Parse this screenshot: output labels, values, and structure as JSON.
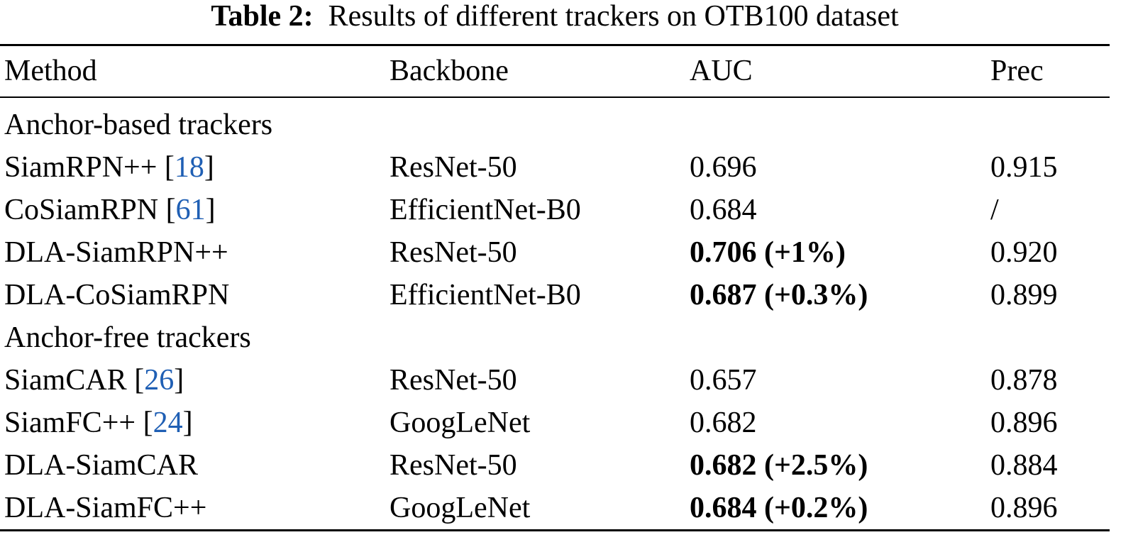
{
  "table": {
    "caption": {
      "label": "Table 2:",
      "text": "Results of different trackers on OTB100 dataset"
    },
    "citation_brackets": [
      "[",
      "]"
    ],
    "header": [
      "Method",
      "Backbone",
      "AUC",
      "Prec"
    ],
    "groups": [
      {
        "name": "Anchor-based trackers",
        "rows": [
          {
            "method": "SiamRPN++",
            "ref": "18",
            "backbone": "ResNet-50",
            "auc": "0.696",
            "prec": "0.915"
          },
          {
            "method": "CoSiamRPN",
            "ref": "61",
            "backbone": "EfficientNet-B0",
            "auc": "0.684",
            "prec": "/"
          },
          {
            "method": "DLA-SiamRPN++",
            "backbone": "ResNet-50",
            "auc": "0.706 (+1%)",
            "auc_bold": true,
            "prec": "0.920"
          },
          {
            "method": "DLA-CoSiamRPN",
            "backbone": "EfficientNet-B0",
            "auc": "0.687 (+0.3%)",
            "auc_bold": true,
            "prec": "0.899"
          }
        ]
      },
      {
        "name": "Anchor-free trackers",
        "rows": [
          {
            "method": "SiamCAR",
            "ref": "26",
            "backbone": "ResNet-50",
            "auc": "0.657",
            "prec": "0.878"
          },
          {
            "method": "SiamFC++",
            "ref": "24",
            "backbone": "GoogLeNet",
            "auc": "0.682",
            "prec": "0.896"
          },
          {
            "method": "DLA-SiamCAR",
            "backbone": "ResNet-50",
            "auc": "0.682 (+2.5%)",
            "auc_bold": true,
            "prec": "0.884"
          },
          {
            "method": "DLA-SiamFC++",
            "backbone": "GoogLeNet",
            "auc": "0.684 (+0.2%)",
            "auc_bold": true,
            "prec": "0.896"
          }
        ]
      }
    ]
  }
}
